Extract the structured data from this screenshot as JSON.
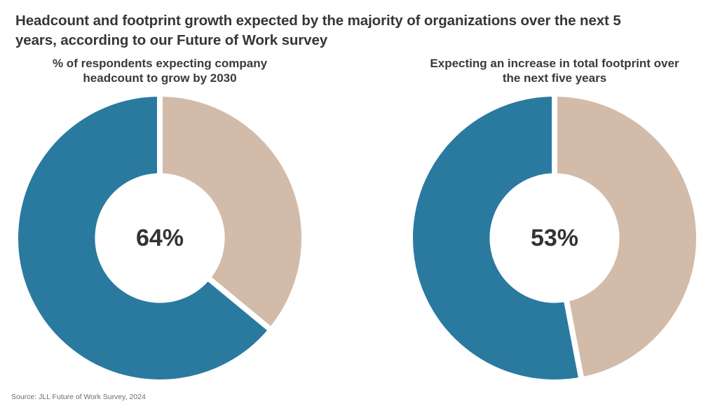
{
  "title": "Headcount and footprint growth expected by the majority of organizations over the next 5\nyears, according to our Future of Work survey",
  "source": "Source: JLL Future of Work Survey, 2024",
  "colors": {
    "background": "#ffffff",
    "accent_blue": "#2a7aa0",
    "neutral_tan": "#d3bba9",
    "heading_text": "#363636",
    "value_text": "#333333",
    "source_text": "#6b6b6b"
  },
  "chart_data": [
    {
      "type": "donut",
      "title": "% of respondents expecting company\nheadcount to grow by 2030",
      "center_label": "64%",
      "slices": [
        {
          "name": "expecting-growth",
          "value": 64,
          "color": "#2a7aa0"
        },
        {
          "name": "remainder",
          "value": 36,
          "color": "#d3bba9"
        }
      ],
      "layout": {
        "start_angle_deg": 0,
        "direction": "counterclockwise",
        "inner_radius_ratio": 0.43,
        "separator_color": "#ffffff",
        "separator_width": 8,
        "legend": "none"
      }
    },
    {
      "type": "donut",
      "title": "Expecting an increase in total footprint over\nthe next five years",
      "center_label": "53%",
      "slices": [
        {
          "name": "expecting-increase",
          "value": 53,
          "color": "#2a7aa0"
        },
        {
          "name": "remainder",
          "value": 47,
          "color": "#d3bba9"
        }
      ],
      "layout": {
        "start_angle_deg": 0,
        "direction": "counterclockwise",
        "inner_radius_ratio": 0.43,
        "separator_color": "#ffffff",
        "separator_width": 8,
        "legend": "none"
      }
    }
  ]
}
